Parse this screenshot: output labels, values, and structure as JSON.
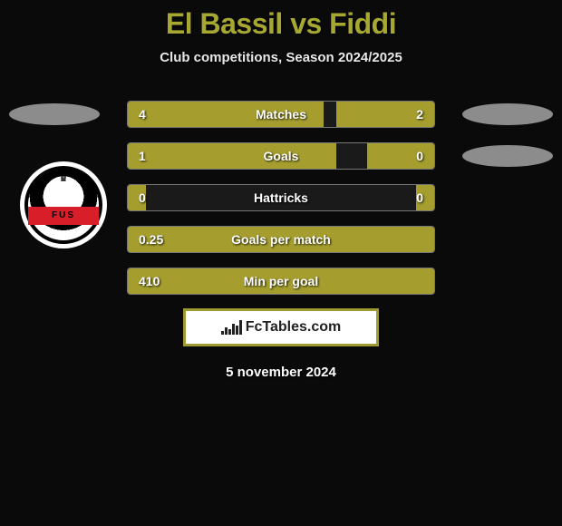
{
  "title": "El Bassil vs Fiddi",
  "subtitle": "Club competitions, Season 2024/2025",
  "colors": {
    "accent": "#a7a832",
    "bar_fill": "#a59e2e",
    "background": "#0a0a0a",
    "text": "#ffffff",
    "shape_gray": "#8c8c8c",
    "border": "#9f9a32"
  },
  "stats": [
    {
      "label": "Matches",
      "left_value": "4",
      "right_value": "2",
      "left_pct": 64,
      "right_pct": 32,
      "show_left_shape": true,
      "show_right_shape": true
    },
    {
      "label": "Goals",
      "left_value": "1",
      "right_value": "0",
      "left_pct": 68,
      "right_pct": 22,
      "show_left_shape": false,
      "show_right_shape": true
    },
    {
      "label": "Hattricks",
      "left_value": "0",
      "right_value": "0",
      "left_pct": 6,
      "right_pct": 6,
      "show_left_shape": false,
      "show_right_shape": false
    },
    {
      "label": "Goals per match",
      "left_value": "0.25",
      "right_value": "",
      "left_pct": 100,
      "right_pct": 0,
      "show_left_shape": false,
      "show_right_shape": false
    },
    {
      "label": "Min per goal",
      "left_value": "410",
      "right_value": "",
      "left_pct": 100,
      "right_pct": 0,
      "show_left_shape": false,
      "show_right_shape": false
    }
  ],
  "badge": {
    "text": "FUS",
    "band_color": "#d81e28"
  },
  "footer": {
    "brand_prefix": "Fc",
    "brand_suffix": "Tables.com"
  },
  "date": "5 november 2024"
}
